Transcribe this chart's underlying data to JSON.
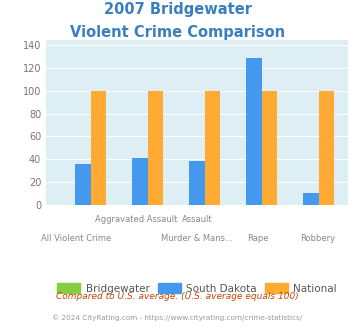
{
  "title_line1": "2007 Bridgewater",
  "title_line2": "Violent Crime Comparison",
  "title_color": "#3a7fbf",
  "categories": [
    "All Violent Crime",
    "Aggravated Assault",
    "Murder & Mans...",
    "Rape",
    "Robbery"
  ],
  "top_labels": [
    "",
    "Aggravated Assault",
    "Assault",
    "",
    ""
  ],
  "bottom_labels": [
    "All Violent Crime",
    "",
    "Murder & Mans...",
    "Rape",
    "Robbery"
  ],
  "bridgewater_values": [
    0,
    0,
    0,
    0,
    0
  ],
  "south_dakota_values": [
    36,
    41,
    38,
    129,
    10
  ],
  "national_values": [
    100,
    100,
    100,
    100,
    100
  ],
  "bridgewater_color": "#88cc44",
  "south_dakota_color": "#4499ee",
  "national_color": "#ffaa33",
  "bg_color": "#ddeef4",
  "ylim": [
    0,
    145
  ],
  "yticks": [
    0,
    20,
    40,
    60,
    80,
    100,
    120,
    140
  ],
  "footnote1": "Compared to U.S. average. (U.S. average equals 100)",
  "footnote2": "© 2024 CityRating.com - https://www.cityrating.com/crime-statistics/",
  "footnote1_color": "#cc4400",
  "footnote2_color": "#999999"
}
